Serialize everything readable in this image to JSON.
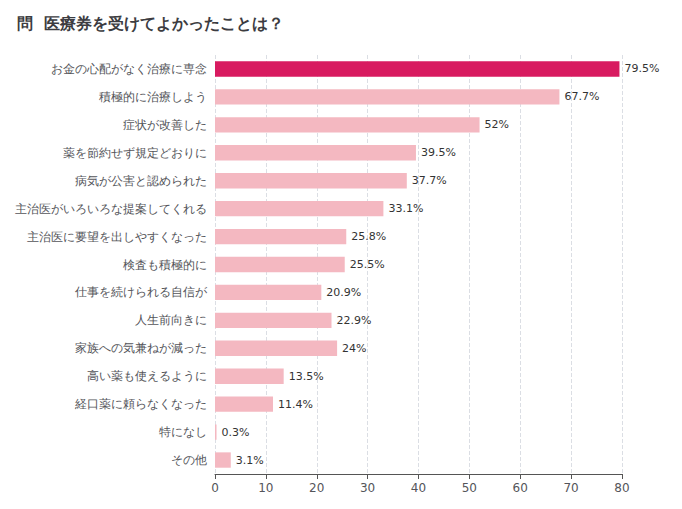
{
  "chart_data": {
    "type": "bar",
    "orientation": "horizontal",
    "title": "問  医療券を受けてよかったことは？",
    "categories": [
      "お金の心配がなく治療に専念",
      "積極的に治療しよう",
      "症状が改善した",
      "薬を節約せず規定どおりに",
      "病気が公害と認められた",
      "主治医がいろいろな提案してくれる",
      "主治医に要望を出しやすくなった",
      "検査も積極的に",
      "仕事を続けられる自信が",
      "人生前向きに",
      "家族への気兼ねが減った",
      "高い薬も使えるように",
      "経口薬に頼らなくなった",
      "特になし",
      "その他"
    ],
    "values": [
      79.5,
      67.7,
      52.0,
      39.5,
      37.7,
      33.1,
      25.8,
      25.5,
      20.9,
      22.9,
      24.0,
      13.5,
      11.4,
      0.3,
      3.1
    ],
    "value_labels": [
      "79.5%",
      "67.7%",
      "52%",
      "39.5%",
      "37.7%",
      "33.1%",
      "25.8%",
      "25.5%",
      "20.9%",
      "22.9%",
      "24%",
      "13.5%",
      "11.4%",
      "0.3%",
      "3.1%"
    ],
    "colors": [
      "#D81B60",
      "#F4B8C1",
      "#F4B8C1",
      "#F4B8C1",
      "#F4B8C1",
      "#F4B8C1",
      "#F4B8C1",
      "#F4B8C1",
      "#F4B8C1",
      "#F4B8C1",
      "#F4B8C1",
      "#F4B8C1",
      "#F4B8C1",
      "#F4B8C1",
      "#F4B8C1"
    ],
    "xlim": [
      0,
      80
    ],
    "xticks": [
      0,
      10,
      20,
      30,
      40,
      50,
      60,
      70,
      80
    ],
    "grid": true,
    "data_labels": true
  }
}
